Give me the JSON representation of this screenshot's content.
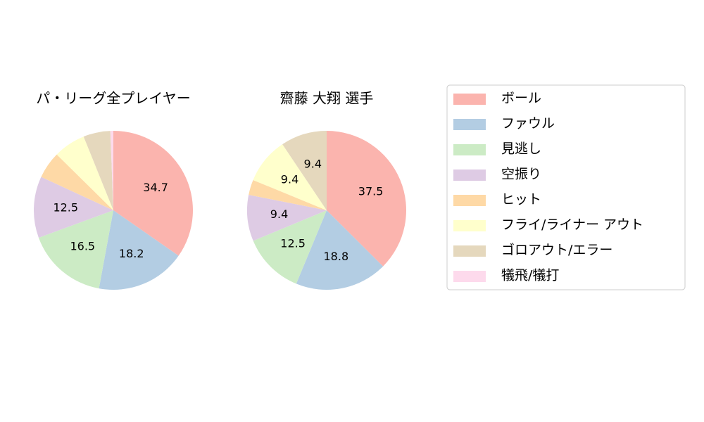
{
  "legend": {
    "labels": [
      "ボール",
      "ファウル",
      "見逃し",
      "空振り",
      "ヒット",
      "フライ/ライナー アウト",
      "ゴロアウト/エラー",
      "犠飛/犠打"
    ],
    "colors": [
      "#fbb4ae",
      "#b3cde3",
      "#ccebc5",
      "#decbe4",
      "#fed9a6",
      "#ffffcc",
      "#e5d8bd",
      "#fddaec"
    ]
  },
  "chart_data": [
    {
      "type": "pie",
      "title": "パ・リーグ全プレイヤー",
      "values": [
        34.7,
        18.2,
        16.5,
        12.5,
        5.5,
        6.5,
        5.5,
        0.6
      ],
      "value_labels": [
        "34.7",
        "18.2",
        "16.5",
        "12.5",
        null,
        null,
        null,
        null
      ]
    },
    {
      "type": "pie",
      "title": "齋藤 大翔  選手",
      "values": [
        37.5,
        18.8,
        12.5,
        9.4,
        3.1,
        9.4,
        9.4,
        0
      ],
      "value_labels": [
        "37.5",
        "18.8",
        "12.5",
        "9.4",
        null,
        "9.4",
        "9.4",
        null
      ]
    }
  ]
}
